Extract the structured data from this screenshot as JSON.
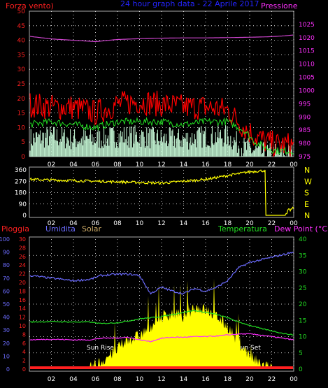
{
  "chart_data": [
    {
      "type": "line",
      "title": "24 hour graph data - 22 Aprile 2017",
      "left_label": "Forza vento)",
      "right_label": "Pressione",
      "colors": {
        "title": "#2424ff",
        "left": "#ff2020",
        "right": "#ff30ff",
        "gust": "#ff0000",
        "average": "#22dd22",
        "instant": "#ccffdd",
        "pressure": "#cc44cc"
      },
      "x_ticks": [
        "02",
        "04",
        "06",
        "08",
        "10",
        "12",
        "14",
        "16",
        "18",
        "20",
        "22",
        "00"
      ],
      "ylim_left": [
        0,
        50
      ],
      "y_ticks_left": [
        "0",
        "5",
        "10",
        "15",
        "20",
        "25",
        "30",
        "35",
        "40",
        "45",
        "50"
      ],
      "ylim_right": [
        975,
        1030
      ],
      "y_ticks_right": [
        "975",
        "980",
        "985",
        "990",
        "995",
        "1000",
        "1005",
        "1010",
        "1015",
        "1020",
        "1025"
      ],
      "grid": true,
      "x": [
        0,
        2,
        4,
        6,
        8,
        10,
        12,
        14,
        16,
        18,
        19.5,
        20.5,
        21.5,
        22.5,
        23.5,
        24
      ],
      "series": [
        {
          "key": "gust",
          "values": [
            18,
            17,
            17,
            15,
            18,
            19,
            18,
            17,
            17,
            16,
            10,
            7,
            5,
            4,
            4,
            4
          ]
        },
        {
          "key": "average",
          "values": [
            11,
            12,
            11,
            10,
            12,
            12,
            12,
            11,
            12,
            12,
            9,
            5,
            3,
            2,
            2,
            2
          ]
        },
        {
          "key": "instant",
          "values": [
            6,
            7,
            6,
            6,
            7,
            7,
            6,
            6,
            7,
            7,
            3,
            2,
            1,
            1,
            1,
            1
          ]
        },
        {
          "key": "pressure",
          "axis": "right",
          "values": [
            1020.5,
            1019.5,
            1019.0,
            1018.5,
            1019.3,
            1019.6,
            1019.8,
            1019.9,
            1019.9,
            1020.0,
            1020.1,
            1020.2,
            1020.3,
            1020.5,
            1020.8,
            1021.0
          ]
        }
      ]
    },
    {
      "type": "line",
      "title": "",
      "x_ticks": [
        "02",
        "04",
        "06",
        "08",
        "10",
        "12",
        "14",
        "16",
        "18",
        "20",
        "22",
        "00"
      ],
      "ylim": [
        0,
        360
      ],
      "y_ticks": [
        "0",
        "90",
        "180",
        "270",
        "360"
      ],
      "direction_labels": [
        "N",
        "W",
        "S",
        "E",
        "N"
      ],
      "colors": {
        "series": "#ffff00",
        "direction": "#ffff00"
      },
      "grid": true,
      "x": [
        0,
        4,
        8,
        12,
        16,
        20,
        21.4,
        21.45,
        23.3,
        23.5,
        24
      ],
      "series": [
        {
          "key": "direction",
          "values": [
            285,
            275,
            265,
            255,
            285,
            345,
            355,
            0,
            0,
            30,
            60
          ]
        }
      ]
    },
    {
      "type": "area",
      "title": "",
      "labels": {
        "rain": "Pioggia",
        "humidity": "Umidita",
        "solar": "Solar",
        "temperature": "Temperatura",
        "dew_point": "Dew Point (°C)"
      },
      "colors": {
        "rain": "#ff2020",
        "humidity": "#6c6cff",
        "solar": "#ccaa66",
        "temperature": "#22dd22",
        "dew_point": "#ff30ff",
        "solar_fill": "#ffff00"
      },
      "x_ticks": [
        "02",
        "04",
        "06",
        "08",
        "10",
        "12",
        "14",
        "16",
        "18",
        "20",
        "22",
        "00"
      ],
      "y_ticks_humidity": [
        "0",
        "10",
        "20",
        "30",
        "40",
        "50",
        "60",
        "70",
        "80",
        "90",
        "100"
      ],
      "y_ticks_rain": [
        "0",
        "2",
        "4",
        "6",
        "8",
        "10",
        "12",
        "14",
        "16",
        "18",
        "20",
        "22",
        "24",
        "26",
        "28",
        "30"
      ],
      "y_ticks_temp": [
        "0",
        "5",
        "10",
        "15",
        "20",
        "25",
        "30",
        "35",
        "40"
      ],
      "ylim_humidity": [
        0,
        100
      ],
      "ylim_temp": [
        0,
        40
      ],
      "annotations": [
        "Sun Rise",
        "Sun Set"
      ],
      "grid": true,
      "x": [
        0,
        2,
        4,
        5.5,
        6.5,
        8,
        9,
        10,
        11,
        12,
        13,
        14,
        15,
        16,
        17,
        18,
        19,
        20,
        21,
        22,
        23,
        24
      ],
      "series": [
        {
          "key": "humidity",
          "axis": "left",
          "values": [
            72,
            70,
            68,
            69,
            72,
            73,
            73,
            72,
            58,
            63,
            60,
            58,
            62,
            60,
            63,
            68,
            78,
            82,
            84,
            86,
            88,
            90
          ]
        },
        {
          "key": "temperature",
          "axis": "right",
          "values": [
            14.5,
            14.6,
            14.5,
            14.5,
            14.0,
            14.3,
            14.8,
            15.5,
            15.8,
            16.2,
            16.8,
            17.5,
            18.0,
            17.5,
            16.8,
            15.8,
            14.5,
            13.5,
            12.5,
            11.8,
            11.0,
            10.5
          ]
        },
        {
          "key": "dew_point",
          "axis": "right",
          "values": [
            9.0,
            9.2,
            9.0,
            9.0,
            9.5,
            9.6,
            9.8,
            9.0,
            8.5,
            9.5,
            9.8,
            9.8,
            10.0,
            10.0,
            10.2,
            10.5,
            10.8,
            10.8,
            10.5,
            10.0,
            9.5,
            9.0
          ]
        },
        {
          "key": "solar",
          "axis": "right",
          "values": [
            0,
            0,
            0,
            0,
            2,
            6,
            9,
            10,
            13,
            16,
            17,
            16,
            19,
            18,
            16,
            13,
            8,
            4,
            1,
            0,
            0,
            0
          ]
        },
        {
          "key": "rain",
          "axis": "rain",
          "values": [
            0,
            0,
            0,
            0,
            0,
            0,
            0,
            0,
            0,
            0,
            0,
            0,
            0,
            0,
            0,
            0,
            0,
            0,
            0,
            0,
            0,
            0
          ]
        }
      ]
    }
  ]
}
